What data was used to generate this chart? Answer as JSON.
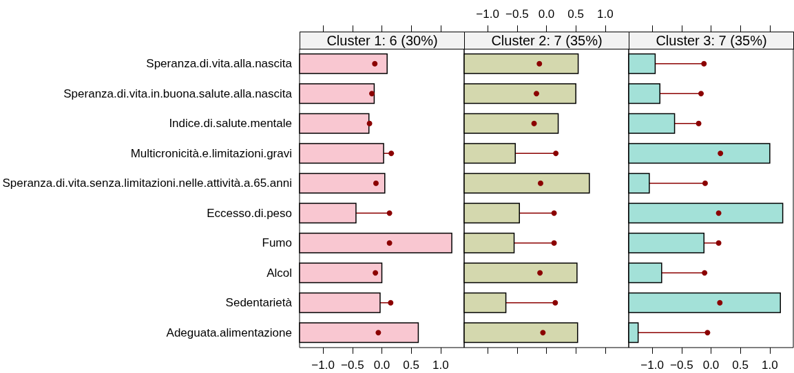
{
  "chart_data": [
    {
      "type": "bar",
      "orientation": "horizontal",
      "title": "Cluster 1: 6 (30%)",
      "categories": [
        "Speranza.di.vita.alla.nascita",
        "Speranza.di.vita.in.buona.salute.alla.nascita",
        "Indice.di.salute.mentale",
        "Multicronicità.e.limitazioni.gravi",
        "Speranza.di.vita.senza.limitazioni.nelle.attività.a.65.anni",
        "Eccesso.di.peso",
        "Fumo",
        "Alcol",
        "Sedentarietà",
        "Adeguata.alimentazione"
      ],
      "xlim": [
        -1.4,
        1.4
      ],
      "xticks": [
        {
          "value": -1,
          "label": "−1.0"
        },
        {
          "value": -0.5,
          "label": "−0.5"
        },
        {
          "value": 0,
          "label": "0.0"
        },
        {
          "value": 0.5,
          "label": "0.5"
        },
        {
          "value": 1,
          "label": "1.0"
        }
      ],
      "series": [
        {
          "color": "#f9c7d1",
          "base": [
            -1.4,
            -1.4,
            -1.4,
            -1.4,
            -1.4,
            -1.4,
            -1.4,
            -1.4,
            -1.4,
            -1.4
          ],
          "values": [
            1.49,
            1.27,
            1.18,
            1.43,
            1.45,
            0.96,
            2.59,
            1.4,
            1.37,
            2.02
          ]
        },
        {
          "type": "scatter",
          "color": "#8b0000",
          "values": [
            -0.12,
            -0.17,
            -0.21,
            0.16,
            -0.1,
            0.13,
            0.13,
            -0.11,
            0.15,
            -0.06
          ],
          "errors": [
            null,
            null,
            null,
            [
              0.03,
              0.16
            ],
            null,
            [
              -0.44,
              0.13
            ],
            null,
            null,
            [
              -0.03,
              0.15
            ],
            null
          ]
        }
      ]
    },
    {
      "type": "bar",
      "orientation": "horizontal",
      "title": "Cluster 2: 7 (35%)",
      "categories": [
        null,
        null,
        null,
        null,
        null,
        null,
        null,
        null,
        null,
        null
      ],
      "xlim": [
        -1.4,
        1.4
      ],
      "xticks": [
        {
          "value": -1,
          "label": "−1.0"
        },
        {
          "value": -0.5,
          "label": "−0.5"
        },
        {
          "value": 0,
          "label": "0.0"
        },
        {
          "value": 0.5,
          "label": "0.5"
        },
        {
          "value": 1,
          "label": "1.0"
        }
      ],
      "tick_labels": "x",
      "series": [
        {
          "color": "#d4d8ae",
          "base": [
            -1.4,
            -1.4,
            -1.4,
            -1.4,
            -1.4,
            -1.4,
            -1.4,
            -1.4,
            -1.4,
            -1.4
          ],
          "values": [
            1.94,
            1.9,
            1.6,
            0.87,
            2.13,
            0.94,
            0.85,
            1.92,
            0.71,
            1.93
          ]
        },
        {
          "type": "scatter",
          "color": "#8b0000",
          "values": [
            -0.12,
            -0.17,
            -0.21,
            0.16,
            -0.1,
            0.13,
            0.13,
            -0.11,
            0.15,
            -0.06
          ],
          "errors": [
            null,
            null,
            null,
            [
              -0.53,
              0.16
            ],
            null,
            [
              -0.46,
              0.13
            ],
            [
              -0.55,
              0.13
            ],
            null,
            [
              -0.69,
              0.15
            ],
            null
          ]
        }
      ]
    },
    {
      "type": "bar",
      "orientation": "horizontal",
      "title": "Cluster 3: 7 (35%)",
      "categories": [
        null,
        null,
        null,
        null,
        null,
        null,
        null,
        null,
        null,
        null
      ],
      "xlim": [
        -1.4,
        1.4
      ],
      "xticks": [
        {
          "value": -1,
          "label": "−1.0"
        },
        {
          "value": -0.5,
          "label": "−0.5"
        },
        {
          "value": 0,
          "label": "0.0"
        },
        {
          "value": 0.5,
          "label": "0.5"
        },
        {
          "value": 1,
          "label": "1.0"
        }
      ],
      "tick_labels": "x",
      "series": [
        {
          "color": "#a3e1d8",
          "base": [
            -1.4,
            -1.4,
            -1.4,
            -1.4,
            -1.4,
            -1.4,
            -1.4,
            -1.4,
            -1.4,
            -1.4
          ],
          "values": [
            0.45,
            0.53,
            0.78,
            2.4,
            0.35,
            2.62,
            1.28,
            0.56,
            2.58,
            0.16
          ]
        },
        {
          "type": "scatter",
          "color": "#8b0000",
          "values": [
            -0.12,
            -0.17,
            -0.21,
            0.16,
            -0.1,
            0.13,
            0.13,
            -0.11,
            0.15,
            -0.06
          ],
          "errors": [
            [
              -0.95,
              -0.12
            ],
            [
              -0.87,
              -0.17
            ],
            [
              -0.62,
              -0.21
            ],
            null,
            [
              -1.05,
              -0.1
            ],
            null,
            [
              -0.12,
              0.13
            ],
            [
              -0.84,
              -0.11
            ],
            null,
            [
              -1.24,
              -0.06
            ]
          ]
        }
      ]
    }
  ]
}
